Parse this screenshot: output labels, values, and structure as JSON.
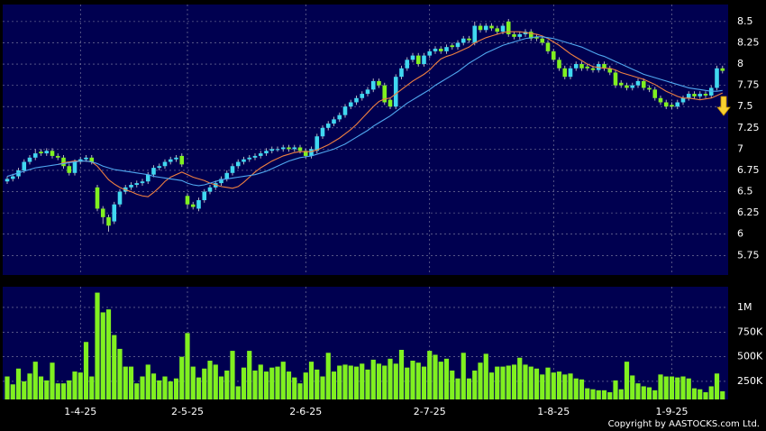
{
  "chart_data": [
    {
      "type": "candlestick",
      "up_color": "#40d8f0",
      "down_color": "#80f020",
      "grid": true,
      "ylim": [
        5.52,
        8.7
      ],
      "yticks": [
        5.75,
        6,
        6.25,
        6.5,
        6.75,
        7,
        7.25,
        7.5,
        7.75,
        8,
        8.25,
        8.5
      ],
      "open": [
        6.62,
        6.65,
        6.68,
        6.75,
        6.85,
        6.9,
        6.97,
        6.95,
        6.98,
        6.92,
        6.9,
        6.8,
        6.72,
        6.85,
        6.88,
        6.9,
        6.55,
        6.3,
        6.2,
        6.15,
        6.35,
        6.5,
        6.55,
        6.58,
        6.6,
        6.62,
        6.7,
        6.78,
        6.8,
        6.85,
        6.88,
        6.92,
        6.45,
        6.35,
        6.3,
        6.4,
        6.5,
        6.55,
        6.6,
        6.65,
        6.72,
        6.8,
        6.85,
        6.88,
        6.9,
        6.92,
        6.95,
        6.98,
        7.0,
        7.0,
        7.02,
        7.0,
        7.02,
        6.98,
        6.92,
        6.98,
        7.15,
        7.25,
        7.3,
        7.35,
        7.4,
        7.5,
        7.55,
        7.6,
        7.65,
        7.7,
        7.8,
        7.75,
        7.58,
        7.5,
        7.85,
        7.95,
        8.05,
        8.1,
        8.0,
        8.1,
        8.15,
        8.18,
        8.15,
        8.22,
        8.2,
        8.25,
        8.3,
        8.25,
        8.45,
        8.4,
        8.45,
        8.42,
        8.38,
        8.5,
        8.35,
        8.32,
        8.35,
        8.38,
        8.32,
        8.3,
        8.25,
        8.15,
        8.05,
        7.95,
        7.85,
        7.95,
        8.0,
        7.97,
        7.95,
        7.93,
        8.0,
        7.95,
        7.9,
        7.78,
        7.75,
        7.72,
        7.75,
        7.8,
        7.72,
        7.7,
        7.6,
        7.55,
        7.52,
        7.5,
        7.55,
        7.6,
        7.65,
        7.62,
        7.65,
        7.63,
        7.72,
        7.95
      ],
      "high": [
        6.68,
        6.71,
        6.78,
        6.88,
        6.93,
        7.0,
        7.0,
        7.01,
        7.01,
        6.95,
        6.93,
        6.83,
        6.88,
        6.91,
        6.93,
        6.93,
        6.58,
        6.33,
        6.23,
        6.38,
        6.53,
        6.58,
        6.61,
        6.63,
        6.65,
        6.73,
        6.81,
        6.83,
        6.88,
        6.91,
        6.93,
        6.95,
        6.48,
        6.38,
        6.43,
        6.53,
        6.58,
        6.63,
        6.68,
        6.75,
        6.83,
        6.88,
        6.91,
        6.93,
        6.95,
        6.98,
        7.01,
        7.03,
        7.03,
        7.05,
        7.05,
        7.05,
        7.05,
        7.01,
        7.03,
        7.18,
        7.28,
        7.33,
        7.38,
        7.43,
        7.53,
        7.58,
        7.63,
        7.68,
        7.73,
        7.83,
        7.83,
        7.78,
        7.61,
        7.88,
        7.98,
        8.08,
        8.13,
        8.13,
        8.13,
        8.18,
        8.21,
        8.21,
        8.23,
        8.25,
        8.28,
        8.33,
        8.33,
        8.5,
        8.48,
        8.48,
        8.48,
        8.45,
        8.48,
        8.53,
        8.38,
        8.38,
        8.41,
        8.41,
        8.35,
        8.33,
        8.28,
        8.18,
        8.08,
        7.98,
        7.98,
        8.03,
        8.03,
        8.0,
        7.98,
        8.03,
        8.03,
        7.98,
        7.93,
        7.81,
        7.78,
        7.78,
        7.83,
        7.83,
        7.75,
        7.73,
        7.63,
        7.58,
        7.55,
        7.58,
        7.63,
        7.68,
        7.68,
        7.68,
        7.68,
        7.75,
        7.98,
        7.98
      ],
      "low": [
        6.59,
        6.62,
        6.65,
        6.72,
        6.82,
        6.87,
        6.92,
        6.92,
        6.89,
        6.87,
        6.77,
        6.69,
        6.69,
        6.82,
        6.85,
        6.82,
        6.27,
        6.12,
        6.03,
        6.12,
        6.32,
        6.47,
        6.52,
        6.55,
        6.57,
        6.59,
        6.67,
        6.75,
        6.77,
        6.82,
        6.85,
        6.79,
        6.3,
        6.29,
        6.27,
        6.37,
        6.47,
        6.52,
        6.57,
        6.62,
        6.69,
        6.77,
        6.82,
        6.85,
        6.87,
        6.89,
        6.92,
        6.95,
        6.97,
        6.97,
        6.97,
        6.97,
        6.95,
        6.89,
        6.89,
        6.95,
        7.12,
        7.22,
        7.27,
        7.32,
        7.37,
        7.47,
        7.52,
        7.57,
        7.62,
        7.67,
        7.72,
        7.52,
        7.47,
        7.47,
        7.82,
        7.92,
        8.02,
        7.97,
        7.97,
        8.07,
        8.12,
        8.12,
        8.12,
        8.17,
        8.17,
        8.22,
        8.25,
        8.22,
        8.37,
        8.37,
        8.39,
        8.35,
        8.35,
        8.32,
        8.29,
        8.29,
        8.32,
        8.27,
        8.27,
        8.22,
        8.12,
        8.02,
        7.92,
        7.82,
        7.82,
        7.92,
        7.92,
        7.92,
        7.9,
        7.9,
        7.92,
        7.87,
        7.72,
        7.72,
        7.69,
        7.69,
        7.72,
        7.69,
        7.67,
        7.57,
        7.52,
        7.47,
        7.47,
        7.47,
        7.52,
        7.57,
        7.59,
        7.59,
        7.6,
        7.6,
        7.69,
        7.89
      ],
      "close": [
        6.65,
        6.68,
        6.75,
        6.85,
        6.9,
        6.95,
        6.95,
        6.98,
        6.92,
        6.9,
        6.8,
        6.72,
        6.85,
        6.88,
        6.9,
        6.85,
        6.3,
        6.2,
        6.1,
        6.35,
        6.5,
        6.55,
        6.58,
        6.6,
        6.62,
        6.7,
        6.78,
        6.8,
        6.85,
        6.88,
        6.9,
        6.82,
        6.35,
        6.32,
        6.4,
        6.5,
        6.55,
        6.6,
        6.65,
        6.72,
        6.8,
        6.85,
        6.88,
        6.9,
        6.92,
        6.95,
        6.98,
        7.0,
        7.0,
        7.02,
        7.0,
        7.02,
        6.98,
        6.92,
        7.0,
        7.15,
        7.25,
        7.3,
        7.35,
        7.4,
        7.5,
        7.55,
        7.6,
        7.65,
        7.7,
        7.8,
        7.75,
        7.55,
        7.5,
        7.85,
        7.95,
        8.05,
        8.1,
        8.0,
        8.1,
        8.15,
        8.18,
        8.15,
        8.2,
        8.2,
        8.25,
        8.3,
        8.28,
        8.45,
        8.4,
        8.45,
        8.42,
        8.38,
        8.45,
        8.35,
        8.32,
        8.35,
        8.38,
        8.3,
        8.3,
        8.25,
        8.15,
        8.05,
        7.95,
        7.85,
        7.95,
        8.0,
        7.95,
        7.95,
        7.93,
        8.0,
        7.95,
        7.9,
        7.75,
        7.75,
        7.72,
        7.75,
        7.8,
        7.72,
        7.7,
        7.6,
        7.55,
        7.5,
        7.5,
        7.55,
        7.6,
        7.65,
        7.62,
        7.65,
        7.63,
        7.72,
        7.95,
        7.92
      ],
      "series": [
        {
          "color": "#f08040",
          "values": [
            null,
            null,
            null,
            null,
            null,
            null,
            null,
            null,
            null,
            6.82,
            6.84,
            6.85,
            6.86,
            6.86,
            6.86,
            6.85,
            6.8,
            6.72,
            6.64,
            6.59,
            6.55,
            6.52,
            6.5,
            6.47,
            6.45,
            6.44,
            6.49,
            6.55,
            6.62,
            6.67,
            6.7,
            6.73,
            6.7,
            6.67,
            6.65,
            6.63,
            6.6,
            6.58,
            6.56,
            6.55,
            6.54,
            6.56,
            6.61,
            6.67,
            6.73,
            6.78,
            6.82,
            6.86,
            6.89,
            6.92,
            6.94,
            6.96,
            6.97,
            6.97,
            6.97,
            6.99,
            7.02,
            7.05,
            7.09,
            7.13,
            7.18,
            7.23,
            7.29,
            7.36,
            7.43,
            7.5,
            7.56,
            7.59,
            7.6,
            7.65,
            7.7,
            7.75,
            7.8,
            7.84,
            7.88,
            7.93,
            8.0,
            8.06,
            8.09,
            8.11,
            8.14,
            8.17,
            8.2,
            8.25,
            8.28,
            8.31,
            8.33,
            8.35,
            8.37,
            8.38,
            8.38,
            8.38,
            8.37,
            8.36,
            8.35,
            8.33,
            8.3,
            8.26,
            8.22,
            8.17,
            8.12,
            8.08,
            8.04,
            8.0,
            7.97,
            7.96,
            7.95,
            7.95,
            7.93,
            7.9,
            7.88,
            7.86,
            7.84,
            7.82,
            7.79,
            7.76,
            7.72,
            7.68,
            7.65,
            7.62,
            7.6,
            7.6,
            7.59,
            7.58,
            7.59,
            7.6,
            7.63,
            7.66
          ]
        },
        {
          "color": "#50a8f0",
          "values": [
            6.68,
            6.7,
            6.72,
            6.74,
            6.76,
            6.78,
            6.79,
            6.8,
            6.81,
            6.82,
            6.83,
            6.84,
            6.85,
            6.86,
            6.86,
            6.85,
            6.83,
            6.8,
            6.78,
            6.76,
            6.75,
            6.74,
            6.73,
            6.72,
            6.71,
            6.7,
            6.68,
            6.67,
            6.66,
            6.65,
            6.64,
            6.63,
            6.6,
            6.58,
            6.57,
            6.58,
            6.6,
            6.62,
            6.64,
            6.65,
            6.66,
            6.67,
            6.68,
            6.69,
            6.7,
            6.72,
            6.74,
            6.77,
            6.8,
            6.83,
            6.86,
            6.88,
            6.9,
            6.91,
            6.92,
            6.94,
            6.96,
            6.98,
            7.0,
            7.03,
            7.06,
            7.1,
            7.14,
            7.18,
            7.22,
            7.27,
            7.31,
            7.35,
            7.39,
            7.44,
            7.49,
            7.54,
            7.58,
            7.62,
            7.66,
            7.7,
            7.75,
            7.79,
            7.83,
            7.87,
            7.91,
            7.96,
            8.01,
            8.05,
            8.09,
            8.13,
            8.16,
            8.19,
            8.22,
            8.24,
            8.26,
            8.28,
            8.3,
            8.31,
            8.32,
            8.32,
            8.31,
            8.3,
            8.28,
            8.26,
            8.24,
            8.22,
            8.2,
            8.17,
            8.14,
            8.11,
            8.09,
            8.06,
            8.03,
            8.0,
            7.97,
            7.94,
            7.91,
            7.88,
            7.86,
            7.84,
            7.82,
            7.8,
            7.78,
            7.76,
            7.74,
            7.72,
            7.71,
            7.7,
            7.69,
            7.68,
            7.68,
            7.69
          ]
        }
      ]
    },
    {
      "type": "bar",
      "color": "#80f020",
      "grid": true,
      "ylim": [
        67000,
        1210000
      ],
      "yticks": [
        {
          "value": 250000,
          "label": "250K"
        },
        {
          "value": 500000,
          "label": "500K"
        },
        {
          "value": 750000,
          "label": "750K"
        },
        {
          "value": 1000000,
          "label": "1M"
        }
      ],
      "categories": [
        null,
        null,
        null,
        null,
        null,
        null,
        null,
        null,
        null,
        null,
        null,
        null,
        null,
        "1-4-25",
        null,
        null,
        null,
        null,
        null,
        null,
        null,
        null,
        null,
        null,
        null,
        null,
        null,
        null,
        null,
        null,
        null,
        null,
        "2-5-25",
        null,
        null,
        null,
        null,
        null,
        null,
        null,
        null,
        null,
        null,
        null,
        null,
        null,
        null,
        null,
        null,
        null,
        null,
        null,
        null,
        "2-6-25",
        null,
        null,
        null,
        null,
        null,
        null,
        null,
        null,
        null,
        null,
        null,
        null,
        null,
        null,
        null,
        null,
        null,
        null,
        null,
        null,
        null,
        "2-7-25",
        null,
        null,
        null,
        null,
        null,
        null,
        null,
        null,
        null,
        null,
        null,
        null,
        null,
        null,
        null,
        null,
        null,
        null,
        null,
        null,
        null,
        "1-8-25",
        null,
        null,
        null,
        null,
        null,
        null,
        null,
        null,
        null,
        null,
        null,
        null,
        null,
        null,
        null,
        null,
        null,
        null,
        null,
        null,
        "1-9-25",
        null,
        null,
        null,
        null,
        null,
        null,
        null,
        null,
        null
      ],
      "values": [
        300000,
        220000,
        380000,
        250000,
        330000,
        450000,
        300000,
        260000,
        440000,
        230000,
        230000,
        260000,
        350000,
        340000,
        650000,
        300000,
        1150000,
        950000,
        980000,
        720000,
        580000,
        400000,
        400000,
        230000,
        300000,
        420000,
        330000,
        260000,
        300000,
        250000,
        280000,
        500000,
        740000,
        400000,
        290000,
        380000,
        460000,
        420000,
        300000,
        360000,
        560000,
        200000,
        390000,
        560000,
        360000,
        420000,
        350000,
        390000,
        400000,
        450000,
        350000,
        290000,
        230000,
        340000,
        450000,
        370000,
        300000,
        540000,
        350000,
        410000,
        420000,
        410000,
        400000,
        430000,
        370000,
        470000,
        430000,
        410000,
        480000,
        430000,
        570000,
        390000,
        460000,
        440000,
        400000,
        560000,
        520000,
        450000,
        480000,
        360000,
        280000,
        540000,
        280000,
        360000,
        440000,
        530000,
        340000,
        400000,
        400000,
        410000,
        420000,
        490000,
        420000,
        400000,
        380000,
        320000,
        390000,
        340000,
        350000,
        320000,
        330000,
        280000,
        270000,
        180000,
        170000,
        160000,
        160000,
        140000,
        260000,
        170000,
        450000,
        310000,
        230000,
        200000,
        190000,
        160000,
        320000,
        300000,
        300000,
        290000,
        300000,
        280000,
        180000,
        170000,
        140000,
        200000,
        330000,
        150000
      ]
    }
  ],
  "footer": {
    "copyright": "Copyright by AASTOCKS.com Ltd."
  }
}
